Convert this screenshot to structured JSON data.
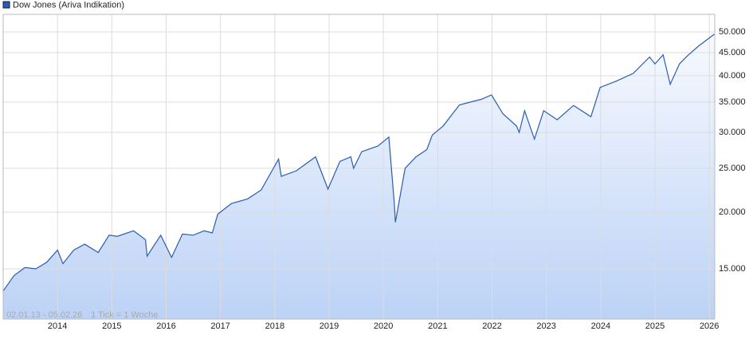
{
  "chart_data": {
    "type": "line",
    "series": [
      {
        "name": "Dow Jones (Ariva Indikation)",
        "color": "#2a5cb0",
        "x": [
          2013.0,
          2013.2,
          2013.4,
          2013.6,
          2013.8,
          2014.0,
          2014.1,
          2014.3,
          2014.5,
          2014.75,
          2014.95,
          2015.1,
          2015.4,
          2015.62,
          2015.65,
          2015.9,
          2016.1,
          2016.3,
          2016.5,
          2016.7,
          2016.85,
          2016.95,
          2017.2,
          2017.5,
          2017.75,
          2017.95,
          2018.07,
          2018.12,
          2018.4,
          2018.75,
          2018.98,
          2019.2,
          2019.4,
          2019.45,
          2019.6,
          2019.9,
          2020.1,
          2020.2,
          2020.22,
          2020.4,
          2020.6,
          2020.8,
          2020.9,
          2021.1,
          2021.4,
          2021.6,
          2021.8,
          2021.99,
          2022.2,
          2022.45,
          2022.5,
          2022.6,
          2022.78,
          2022.95,
          2023.2,
          2023.5,
          2023.82,
          2023.99,
          2024.3,
          2024.6,
          2024.9,
          2025.0,
          2025.15,
          2025.28,
          2025.45,
          2025.6,
          2025.8,
          2025.95,
          2026.1
        ],
        "values": [
          13400,
          14500,
          15100,
          15000,
          15500,
          16500,
          15400,
          16500,
          17000,
          16300,
          17800,
          17700,
          18200,
          17400,
          16000,
          17800,
          15900,
          17900,
          17800,
          18200,
          18000,
          19800,
          20900,
          21400,
          22400,
          24700,
          26200,
          24000,
          24700,
          26500,
          22500,
          25900,
          26500,
          25000,
          27200,
          28000,
          29300,
          21000,
          19000,
          25000,
          26500,
          27500,
          29600,
          31000,
          34500,
          35000,
          35500,
          36300,
          33000,
          31000,
          30000,
          33500,
          29000,
          33500,
          32000,
          34400,
          32500,
          37700,
          39000,
          40500,
          44000,
          42500,
          44500,
          38300,
          42500,
          44300,
          46500,
          48000,
          49500
        ]
      }
    ],
    "xlim": [
      2013.0,
      2026.1
    ],
    "xticks": [
      2014,
      2015,
      2016,
      2017,
      2018,
      2019,
      2020,
      2021,
      2022,
      2023,
      2024,
      2025,
      2026
    ],
    "ylim": [
      11620,
      54660
    ],
    "log_y": true,
    "yticks": [
      {
        "value": 15000,
        "label": "15.000"
      },
      {
        "value": 20000,
        "label": "20.000"
      },
      {
        "value": 25000,
        "label": "25.000"
      },
      {
        "value": 30000,
        "label": "30.000"
      },
      {
        "value": 35000,
        "label": "35.000"
      },
      {
        "value": 40000,
        "label": "40.000"
      },
      {
        "value": 45000,
        "label": "45.000"
      },
      {
        "value": 50000,
        "label": "50.000"
      }
    ],
    "grid": true,
    "legend": "top-left",
    "period": "02.01.13 - 05.02.26",
    "tick_note": "1 Tick = 1 Woche"
  }
}
